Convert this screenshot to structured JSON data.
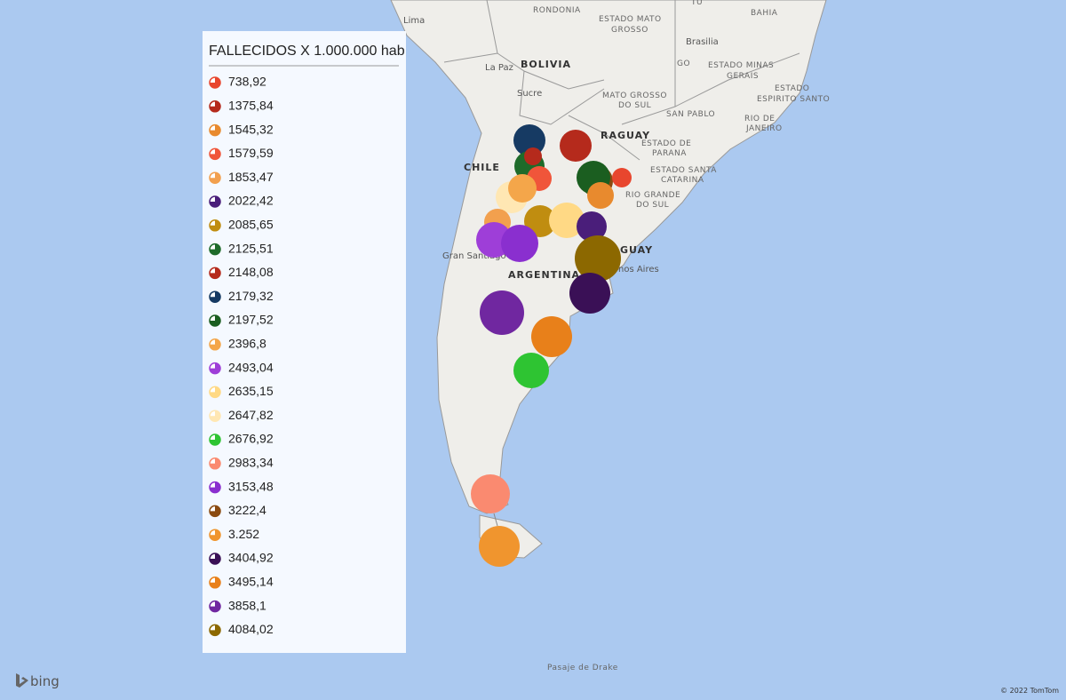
{
  "map": {
    "labels": {
      "rondonia": "RONDONIA",
      "mato_grosso_1": "ESTADO MATO",
      "mato_grosso_2": "GROSSO",
      "bahia": "BAHIA",
      "tu": "TU",
      "brasilia": "Brasilia",
      "go": "GO",
      "minas_1": "ESTADO MINAS",
      "minas_2": "GERAIS",
      "lima": "Lima",
      "la_paz": "La Paz",
      "bolivia": "BOLIVIA",
      "sucre": "Sucre",
      "mgs_1": "MATO GROSSO",
      "mgs_2": "DO SUL",
      "es_1": "ESTADO",
      "es_2": "ESPIRITO SANTO",
      "san_pablo": "SAN PABLO",
      "rio_1": "RIO DE",
      "rio_2": "JANEIRO",
      "paraguay": "RAGUAY",
      "parana_1": "ESTADO DE",
      "parana_2": "PARANA",
      "sc_1": "ESTADO SANTA",
      "sc_2": "CATARINA",
      "rgs_1": "RIO GRANDE",
      "rgs_2": "DO SUL",
      "chile": "CHILE",
      "santiago": "Gran Santiago",
      "argentina": "ARGENTINA",
      "uruguay": "GUAY",
      "buenos_aires": "nos Aires",
      "drake": "Pasaje de Drake",
      "bing": "bing",
      "copyright": "© 2022 TomTom"
    }
  },
  "legend": {
    "title": "FALLECIDOS X 1.000.000 hab",
    "items": [
      {
        "label": "738,92",
        "color": "#e8462e"
      },
      {
        "label": "1375,84",
        "color": "#b52a1c"
      },
      {
        "label": "1545,32",
        "color": "#e88a2e"
      },
      {
        "label": "1579,59",
        "color": "#f0553a"
      },
      {
        "label": "1853,47",
        "color": "#f2a04e"
      },
      {
        "label": "2022,42",
        "color": "#4a1e7a"
      },
      {
        "label": "2085,65",
        "color": "#c08d10"
      },
      {
        "label": "2125,51",
        "color": "#1e6b2a"
      },
      {
        "label": "2148,08",
        "color": "#b52a1c"
      },
      {
        "label": "2179,32",
        "color": "#163a63"
      },
      {
        "label": "2197,52",
        "color": "#1b5e20"
      },
      {
        "label": "2396,8",
        "color": "#f4a64a"
      },
      {
        "label": "2493,04",
        "color": "#9e3ed8"
      },
      {
        "label": "2635,15",
        "color": "#ffd985"
      },
      {
        "label": "2647,82",
        "color": "#ffe7b3"
      },
      {
        "label": "2676,92",
        "color": "#2ec432"
      },
      {
        "label": "2983,34",
        "color": "#fa8a70"
      },
      {
        "label": "3153,48",
        "color": "#8a2fcf"
      },
      {
        "label": "3222,4",
        "color": "#8a4a10"
      },
      {
        "label": "3.252",
        "color": "#f0952e"
      },
      {
        "label": "3404,92",
        "color": "#3a1056"
      },
      {
        "label": "3495,14",
        "color": "#e8801a"
      },
      {
        "label": "3858,1",
        "color": "#7027a0"
      },
      {
        "label": "4084,02",
        "color": "#8c6800"
      }
    ]
  }
}
